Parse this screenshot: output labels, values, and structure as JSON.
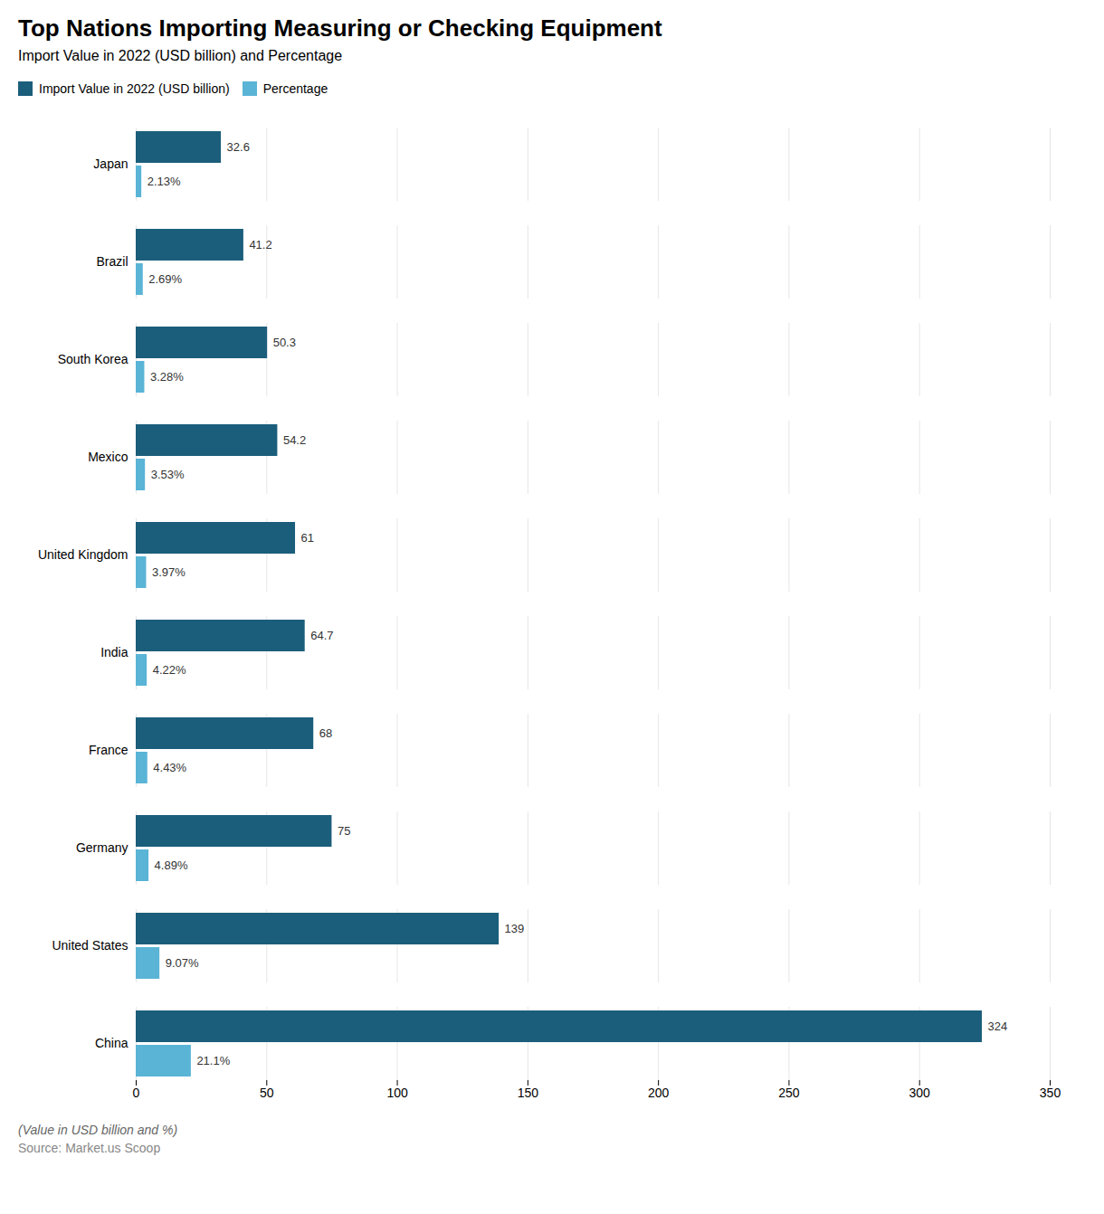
{
  "chart_data": {
    "type": "bar",
    "orientation": "horizontal",
    "title": "Top Nations Importing Measuring or Checking Equipment",
    "subtitle": "Import Value in 2022 (USD billion) and Percentage",
    "annotations": [
      "(Value in USD billion and %)",
      "Source: Market.us Scoop"
    ],
    "categories": [
      "Japan",
      "Brazil",
      "South Korea",
      "Mexico",
      "United Kingdom",
      "India",
      "France",
      "Germany",
      "United States",
      "China"
    ],
    "series": [
      {
        "name": "Import Value in 2022 (USD billion)",
        "color": "#1b5e7b",
        "values": [
          32.6,
          41.2,
          50.3,
          54.2,
          61,
          64.7,
          68,
          75,
          139,
          324
        ]
      },
      {
        "name": "Percentage",
        "color": "#5ab4d6",
        "values": [
          2.13,
          2.69,
          3.28,
          3.53,
          3.97,
          4.22,
          4.43,
          4.89,
          9.07,
          21.1
        ],
        "value_labels": [
          "2.13%",
          "2.69%",
          "3.28%",
          "3.53%",
          "3.97%",
          "4.22%",
          "4.43%",
          "4.89%",
          "9.07%",
          "21.1%"
        ]
      }
    ],
    "xlim": [
      0,
      350
    ],
    "xticks": [
      0,
      50,
      100,
      150,
      200,
      250,
      300,
      350
    ],
    "grid": true,
    "legend": "upper left",
    "data_labels": true
  }
}
